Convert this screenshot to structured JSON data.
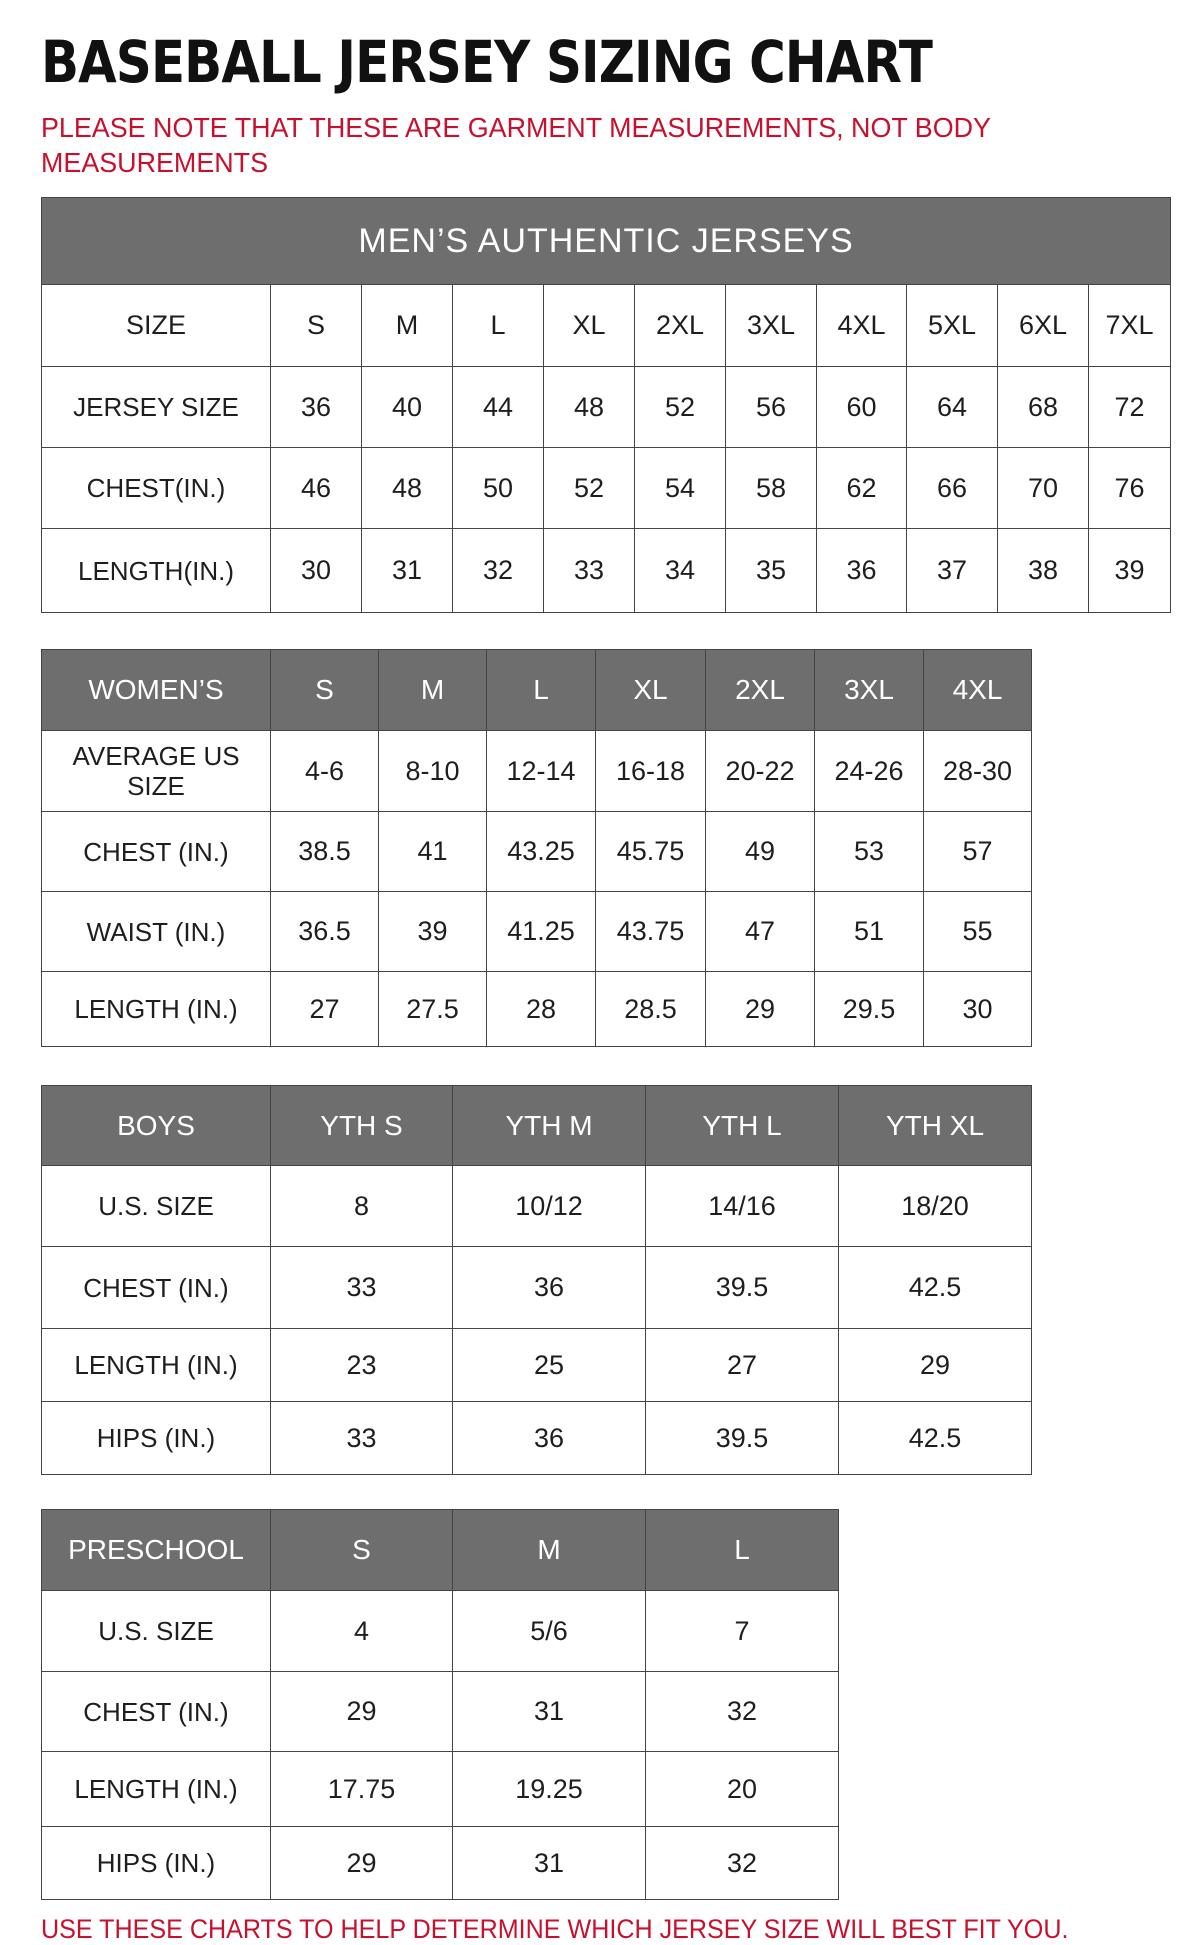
{
  "title": "BASEBALL JERSEY SIZING CHART",
  "note": "PLEASE NOTE THAT THESE ARE GARMENT MEASUREMENTS, NOT BODY MEASUREMENTS",
  "footer": "USE THESE CHARTS TO HELP DETERMINE WHICH JERSEY SIZE WILL BEST FIT YOU.",
  "colors": {
    "header_bg": "#6e6e6e",
    "accent_red": "#c8102e"
  },
  "mens": {
    "banner": "MEN’S AUTHENTIC JERSEYS",
    "header": [
      "SIZE",
      "S",
      "M",
      "L",
      "XL",
      "2XL",
      "3XL",
      "4XL",
      "5XL",
      "6XL",
      "7XL"
    ],
    "rows": [
      [
        "JERSEY SIZE",
        "36",
        "40",
        "44",
        "48",
        "52",
        "56",
        "60",
        "64",
        "68",
        "72"
      ],
      [
        "CHEST(IN.)",
        "46",
        "48",
        "50",
        "52",
        "54",
        "58",
        "62",
        "66",
        "70",
        "76"
      ],
      [
        "LENGTH(IN.)",
        "30",
        "31",
        "32",
        "33",
        "34",
        "35",
        "36",
        "37",
        "38",
        "39"
      ]
    ]
  },
  "womens": {
    "header": [
      "WOMEN’S",
      "S",
      "M",
      "L",
      "XL",
      "2XL",
      "3XL",
      "4XL"
    ],
    "rows": [
      [
        "AVERAGE US SIZE",
        "4-6",
        "8-10",
        "12-14",
        "16-18",
        "20-22",
        "24-26",
        "28-30"
      ],
      [
        "CHEST (IN.)",
        "38.5",
        "41",
        "43.25",
        "45.75",
        "49",
        "53",
        "57"
      ],
      [
        "WAIST (IN.)",
        "36.5",
        "39",
        "41.25",
        "43.75",
        "47",
        "51",
        "55"
      ],
      [
        "LENGTH (IN.)",
        "27",
        "27.5",
        "28",
        "28.5",
        "29",
        "29.5",
        "30"
      ]
    ]
  },
  "boys": {
    "header": [
      "BOYS",
      "YTH S",
      "YTH M",
      "YTH L",
      "YTH XL"
    ],
    "rows": [
      [
        "U.S. SIZE",
        "8",
        "10/12",
        "14/16",
        "18/20"
      ],
      [
        "CHEST (IN.)",
        "33",
        "36",
        "39.5",
        "42.5"
      ],
      [
        "LENGTH (IN.)",
        "23",
        "25",
        "27",
        "29"
      ],
      [
        "HIPS (IN.)",
        "33",
        "36",
        "39.5",
        "42.5"
      ]
    ]
  },
  "preschool": {
    "header": [
      "PRESCHOOL",
      "S",
      "M",
      "L"
    ],
    "rows": [
      [
        "U.S. SIZE",
        "4",
        "5/6",
        "7"
      ],
      [
        "CHEST (IN.)",
        "29",
        "31",
        "32"
      ],
      [
        "LENGTH (IN.)",
        "17.75",
        "19.25",
        "20"
      ],
      [
        "HIPS (IN.)",
        "29",
        "31",
        "32"
      ]
    ]
  }
}
